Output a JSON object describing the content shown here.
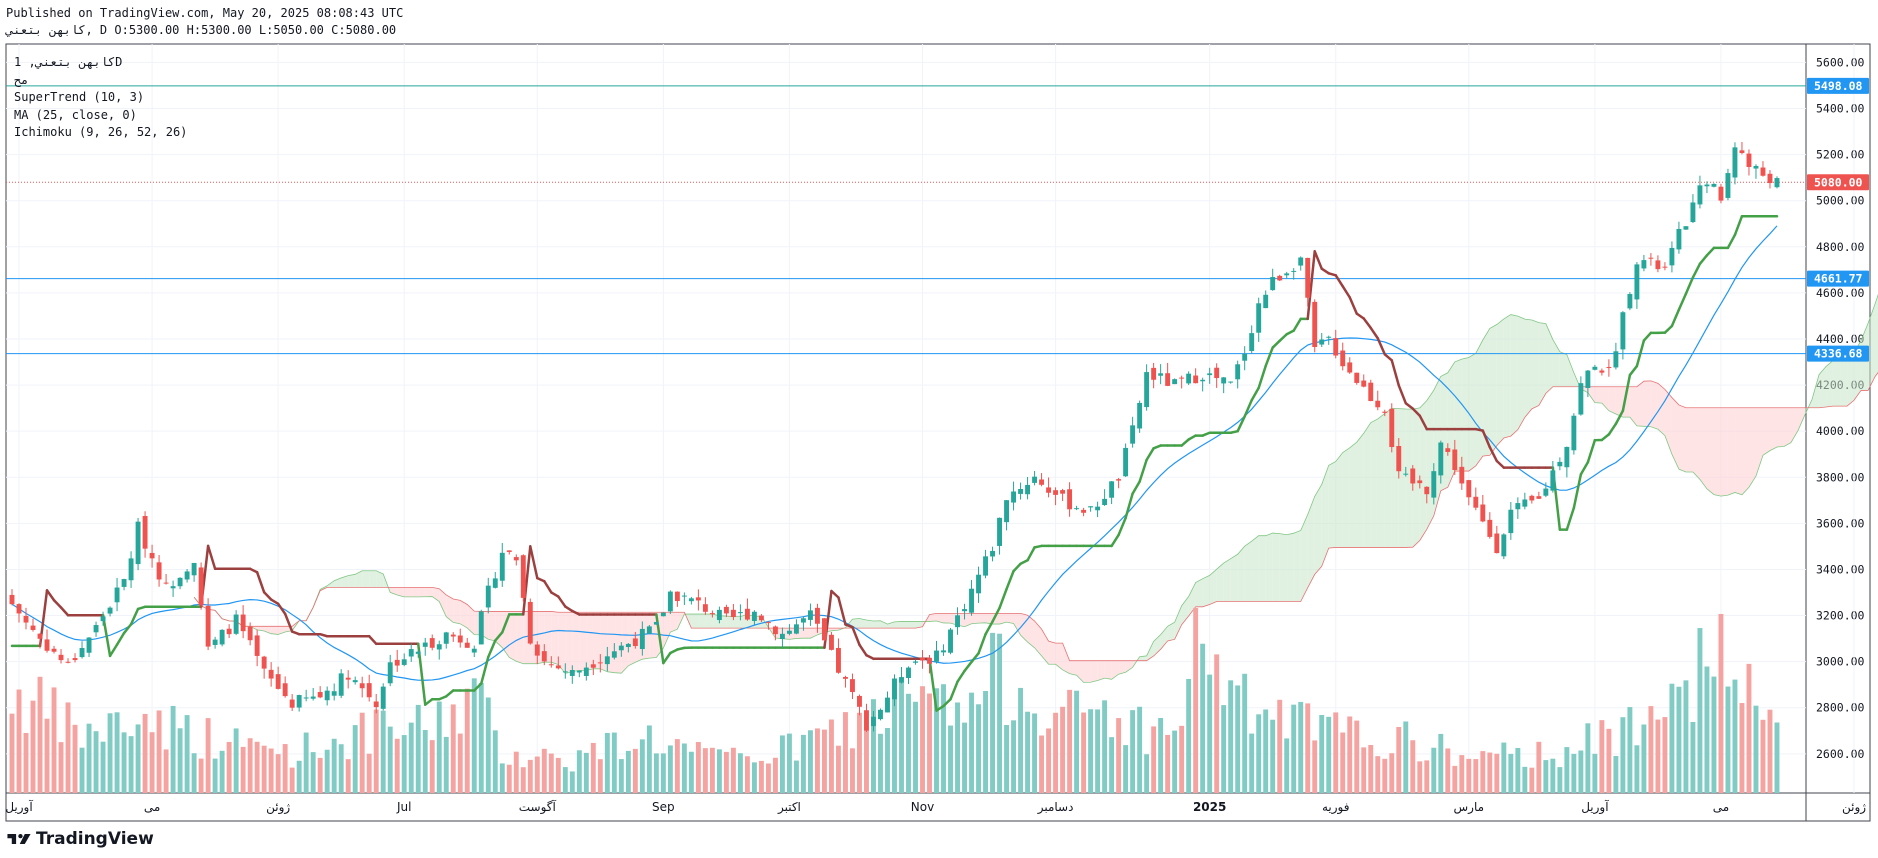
{
  "header": {
    "published": "Published on TradingView.com, May 20, 2025 08:08:43 UTC",
    "ohlc_line": "كابهن بتعني, D O:5300.00 H:5300.00 L:5050.00 C:5080.00"
  },
  "legend": {
    "symbol": "كابهن بتعني, 1D",
    "exchange": "مح",
    "supertrend": "SuperTrend (10, 3)",
    "ma": "MA (25, close, 0)",
    "ichimoku": "Ichimoku (9, 26, 52, 26)"
  },
  "brand": {
    "name": "TradingView"
  },
  "colors": {
    "up": "#26a69a",
    "down": "#ef5350",
    "ma": "#2196f3",
    "st_up": "#43a047",
    "st_down": "#9c3f3f",
    "cloud_green": "#c8e6c9",
    "cloud_red": "#ffcdd2",
    "hline": "#2196f3",
    "hline_teal": "#26a69a",
    "last_price": "#ef5350"
  },
  "chart_data": {
    "type": "candlestick",
    "timeframe": "1D",
    "y_ticks": [
      2600,
      2800,
      3000,
      3200,
      3400,
      3600,
      3800,
      4000,
      4200,
      4400,
      4600,
      4800,
      5000,
      5200,
      5400,
      5600
    ],
    "y_tick_labels": [
      "2600.00",
      "2800.00",
      "3000.00",
      "3200.00",
      "3400.00",
      "3600.00",
      "3800.00",
      "4000.00",
      "4200.00",
      "4400.00",
      "4600.00",
      "4800.00",
      "5000.00",
      "5200.00",
      "5400.00",
      "5600.00"
    ],
    "ylim": [
      2430,
      5680
    ],
    "x_ticks": [
      {
        "label": "آوریل",
        "bar": 1
      },
      {
        "label": "می",
        "bar": 20
      },
      {
        "label": "ژوئن",
        "bar": 38
      },
      {
        "label": "Jul",
        "bar": 56
      },
      {
        "label": "آگوست",
        "bar": 75
      },
      {
        "label": "Sep",
        "bar": 93
      },
      {
        "label": "اکتبر",
        "bar": 111
      },
      {
        "label": "Nov",
        "bar": 130
      },
      {
        "label": "دسامبر",
        "bar": 149
      },
      {
        "label": "2025",
        "bar": 171
      },
      {
        "label": "فوریه",
        "bar": 189
      },
      {
        "label": "مارس",
        "bar": 208
      },
      {
        "label": "آوریل",
        "bar": 226
      },
      {
        "label": "می",
        "bar": 244
      },
      {
        "label": "ژوئن",
        "bar": 263
      }
    ],
    "price_lines": [
      {
        "value": 5498.08,
        "label": "5498.08",
        "kind": "teal"
      },
      {
        "value": 4661.77,
        "label": "4661.77",
        "kind": "blue"
      },
      {
        "value": 4336.68,
        "label": "4336.68",
        "kind": "blue"
      },
      {
        "value": 5080.0,
        "label": "5080.00",
        "kind": "last"
      }
    ],
    "closes_anchor": [
      [
        0,
        3250
      ],
      [
        4,
        3100
      ],
      [
        8,
        2980
      ],
      [
        12,
        3150
      ],
      [
        16,
        3350
      ],
      [
        18,
        3580
      ],
      [
        22,
        3320
      ],
      [
        26,
        3450
      ],
      [
        28,
        3050
      ],
      [
        32,
        3180
      ],
      [
        36,
        2950
      ],
      [
        40,
        2820
      ],
      [
        44,
        2850
      ],
      [
        48,
        2950
      ],
      [
        52,
        2820
      ],
      [
        54,
        2990
      ],
      [
        58,
        3050
      ],
      [
        62,
        3120
      ],
      [
        66,
        3080
      ],
      [
        68,
        3300
      ],
      [
        70,
        3480
      ],
      [
        72,
        3450
      ],
      [
        74,
        3100
      ],
      [
        76,
        3000
      ],
      [
        80,
        2950
      ],
      [
        84,
        3020
      ],
      [
        88,
        3080
      ],
      [
        92,
        3150
      ],
      [
        94,
        3300
      ],
      [
        98,
        3250
      ],
      [
        102,
        3180
      ],
      [
        106,
        3220
      ],
      [
        110,
        3120
      ],
      [
        114,
        3200
      ],
      [
        116,
        3080
      ],
      [
        120,
        2850
      ],
      [
        122,
        2730
      ],
      [
        124,
        2800
      ],
      [
        128,
        3000
      ],
      [
        132,
        3020
      ],
      [
        136,
        3250
      ],
      [
        140,
        3500
      ],
      [
        142,
        3720
      ],
      [
        146,
        3800
      ],
      [
        150,
        3700
      ],
      [
        154,
        3650
      ],
      [
        158,
        3800
      ],
      [
        160,
        4000
      ],
      [
        162,
        4250
      ],
      [
        166,
        4200
      ],
      [
        170,
        4250
      ],
      [
        174,
        4200
      ],
      [
        176,
        4350
      ],
      [
        178,
        4550
      ],
      [
        180,
        4650
      ],
      [
        184,
        4750
      ],
      [
        186,
        4350
      ],
      [
        188,
        4400
      ],
      [
        190,
        4300
      ],
      [
        194,
        4150
      ],
      [
        196,
        4100
      ],
      [
        198,
        3800
      ],
      [
        202,
        3750
      ],
      [
        204,
        3950
      ],
      [
        206,
        3850
      ],
      [
        208,
        3700
      ],
      [
        212,
        3500
      ],
      [
        214,
        3650
      ],
      [
        218,
        3700
      ],
      [
        222,
        3950
      ],
      [
        224,
        4200
      ],
      [
        226,
        4300
      ],
      [
        228,
        4250
      ],
      [
        230,
        4500
      ],
      [
        232,
        4750
      ],
      [
        236,
        4700
      ],
      [
        238,
        4850
      ],
      [
        242,
        5100
      ],
      [
        244,
        5000
      ],
      [
        246,
        5250
      ],
      [
        248,
        5150
      ],
      [
        252,
        5080
      ]
    ],
    "volume_anchor": [
      [
        0,
        0.6
      ],
      [
        10,
        0.35
      ],
      [
        20,
        0.45
      ],
      [
        30,
        0.3
      ],
      [
        40,
        0.25
      ],
      [
        50,
        0.35
      ],
      [
        60,
        0.4
      ],
      [
        66,
        0.6
      ],
      [
        70,
        0.25
      ],
      [
        80,
        0.2
      ],
      [
        90,
        0.35
      ],
      [
        100,
        0.2
      ],
      [
        110,
        0.25
      ],
      [
        120,
        0.4
      ],
      [
        125,
        0.5
      ],
      [
        130,
        0.55
      ],
      [
        136,
        0.45
      ],
      [
        140,
        0.7
      ],
      [
        146,
        0.6
      ],
      [
        150,
        0.45
      ],
      [
        156,
        0.5
      ],
      [
        160,
        0.4
      ],
      [
        166,
        0.35
      ],
      [
        170,
        1.0
      ],
      [
        174,
        0.55
      ],
      [
        180,
        0.45
      ],
      [
        190,
        0.35
      ],
      [
        200,
        0.3
      ],
      [
        210,
        0.2
      ],
      [
        220,
        0.25
      ],
      [
        230,
        0.35
      ],
      [
        236,
        0.75
      ],
      [
        240,
        0.7
      ],
      [
        244,
        0.8
      ],
      [
        248,
        0.55
      ],
      [
        252,
        0.45
      ]
    ]
  }
}
